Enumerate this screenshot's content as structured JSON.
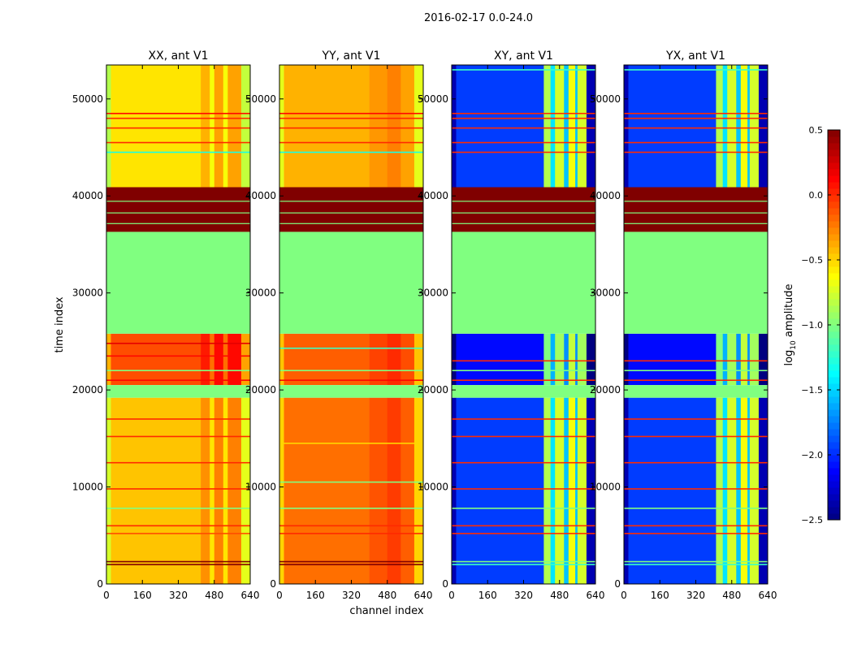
{
  "chart_data": {
    "type": "heatmap",
    "suptitle": "2016-02-17 0.0-24.0",
    "xlabel": "channel index",
    "ylabel": "time index",
    "xlim": [
      0,
      640
    ],
    "ylim": [
      0,
      53500
    ],
    "xticks": [
      0,
      160,
      320,
      480,
      640
    ],
    "yticks": [
      0,
      10000,
      20000,
      30000,
      40000,
      50000
    ],
    "colorbar": {
      "label_main": "log",
      "label_sub": "10",
      "label_rest": " amplitude",
      "range": [
        -2.5,
        0.5
      ],
      "ticks": [
        "0.5",
        "0.0",
        "−0.5",
        "−1.0",
        "−1.5",
        "−2.0",
        "−2.5"
      ],
      "tick_values": [
        0.5,
        0.0,
        -0.5,
        -1.0,
        -1.5,
        -2.0,
        -2.5
      ],
      "colormap": "jet"
    },
    "flagged_segments": [
      {
        "t": [
          19200,
          20500
        ],
        "value": -1.0
      },
      {
        "t": [
          25800,
          36300
        ],
        "value": -1.0
      },
      {
        "t": [
          36300,
          40900
        ],
        "value": 0.5
      }
    ],
    "panels": [
      {
        "title": "XX, ant V1",
        "segments": [
          {
            "t": [
              0,
              19200
            ],
            "value": -0.45
          },
          {
            "t": [
              20500,
              25800
            ],
            "value": -0.1
          },
          {
            "t": [
              40900,
              53500
            ],
            "value": -0.55
          }
        ],
        "channel_offsets": [
          [
            0,
            20,
            -0.3
          ],
          [
            20,
            420,
            0
          ],
          [
            420,
            460,
            0.15
          ],
          [
            460,
            480,
            -0.1
          ],
          [
            480,
            520,
            0.2
          ],
          [
            520,
            540,
            -0.1
          ],
          [
            540,
            600,
            0.2
          ],
          [
            600,
            640,
            -0.25
          ]
        ],
        "lines": [
          [
            2000,
            0.5
          ],
          [
            2300,
            0.5
          ],
          [
            5200,
            -0.1
          ],
          [
            6000,
            0.0
          ],
          [
            7800,
            -1.0
          ],
          [
            9800,
            0.0
          ],
          [
            12500,
            0.0
          ],
          [
            15200,
            0.0
          ],
          [
            17000,
            0.0
          ],
          [
            21000,
            0.1
          ],
          [
            22000,
            -1.0
          ],
          [
            23500,
            0.1
          ],
          [
            24800,
            0.2
          ],
          [
            44500,
            -1.3
          ],
          [
            45500,
            0.0
          ],
          [
            47000,
            0.0
          ],
          [
            48000,
            0.0
          ],
          [
            48500,
            0.1
          ]
        ]
      },
      {
        "title": "YY, ant V1",
        "segments": [
          {
            "t": [
              0,
              19200
            ],
            "value": -0.2
          },
          {
            "t": [
              20500,
              25800
            ],
            "value": -0.15
          },
          {
            "t": [
              40900,
              53500
            ],
            "value": -0.4
          }
        ],
        "channel_offsets": [
          [
            0,
            20,
            -0.3
          ],
          [
            20,
            400,
            0
          ],
          [
            400,
            480,
            0.08
          ],
          [
            480,
            540,
            0.15
          ],
          [
            540,
            600,
            0.05
          ],
          [
            600,
            640,
            -0.3
          ]
        ],
        "lines": [
          [
            2000,
            0.5
          ],
          [
            2300,
            0.5
          ],
          [
            5200,
            0.0
          ],
          [
            6000,
            0.0
          ],
          [
            7800,
            -1.0
          ],
          [
            10500,
            -1.0
          ],
          [
            14500,
            -0.5
          ],
          [
            21000,
            0.1
          ],
          [
            22000,
            -1.0
          ],
          [
            24300,
            -1.2
          ],
          [
            44500,
            -1.3
          ],
          [
            45500,
            0.0
          ],
          [
            47000,
            0.0
          ],
          [
            48000,
            0.0
          ],
          [
            48500,
            0.1
          ]
        ]
      },
      {
        "title": "XY, ant V1",
        "segments": [
          {
            "t": [
              0,
              19200
            ],
            "value": -1.95
          },
          {
            "t": [
              20500,
              25800
            ],
            "value": -2.1
          },
          {
            "t": [
              40900,
              53500
            ],
            "value": -1.95
          }
        ],
        "channel_offsets": [
          [
            0,
            20,
            -0.4
          ],
          [
            20,
            410,
            0
          ],
          [
            410,
            440,
            1.1
          ],
          [
            440,
            460,
            0.5
          ],
          [
            460,
            500,
            1.2
          ],
          [
            500,
            520,
            0.4
          ],
          [
            520,
            550,
            1.3
          ],
          [
            550,
            560,
            0.4
          ],
          [
            560,
            600,
            1.2
          ],
          [
            600,
            640,
            -0.4
          ]
        ],
        "lines": [
          [
            2000,
            -1.2
          ],
          [
            2300,
            -1.0
          ],
          [
            5200,
            0.0
          ],
          [
            6000,
            0.0
          ],
          [
            7800,
            -1.0
          ],
          [
            9800,
            0.0
          ],
          [
            12500,
            0.0
          ],
          [
            15200,
            0.0
          ],
          [
            17000,
            0.0
          ],
          [
            21000,
            0.0
          ],
          [
            22000,
            -1.0
          ],
          [
            23000,
            0.0
          ],
          [
            44500,
            0.0
          ],
          [
            45500,
            0.0
          ],
          [
            47000,
            0.0
          ],
          [
            48000,
            0.0
          ],
          [
            48500,
            0.0
          ],
          [
            53000,
            -1.2
          ]
        ]
      },
      {
        "title": "YX, ant V1",
        "segments": [
          {
            "t": [
              0,
              19200
            ],
            "value": -1.95
          },
          {
            "t": [
              20500,
              25800
            ],
            "value": -2.1
          },
          {
            "t": [
              40900,
              53500
            ],
            "value": -1.95
          }
        ],
        "channel_offsets": [
          [
            0,
            20,
            -0.4
          ],
          [
            20,
            410,
            0
          ],
          [
            410,
            440,
            1.1
          ],
          [
            440,
            460,
            0.5
          ],
          [
            460,
            500,
            1.2
          ],
          [
            500,
            520,
            0.4
          ],
          [
            520,
            550,
            1.3
          ],
          [
            550,
            560,
            0.4
          ],
          [
            560,
            600,
            1.2
          ],
          [
            600,
            640,
            -0.4
          ]
        ],
        "lines": [
          [
            2000,
            -1.2
          ],
          [
            2300,
            -1.0
          ],
          [
            5200,
            0.0
          ],
          [
            6000,
            0.0
          ],
          [
            7800,
            -1.0
          ],
          [
            9800,
            0.0
          ],
          [
            12500,
            0.0
          ],
          [
            15200,
            0.0
          ],
          [
            17000,
            0.0
          ],
          [
            21000,
            0.0
          ],
          [
            22000,
            -1.0
          ],
          [
            23000,
            0.0
          ],
          [
            44500,
            0.0
          ],
          [
            45500,
            0.0
          ],
          [
            47000,
            0.0
          ],
          [
            48000,
            0.0
          ],
          [
            48500,
            0.0
          ],
          [
            53000,
            -1.2
          ]
        ]
      }
    ]
  }
}
